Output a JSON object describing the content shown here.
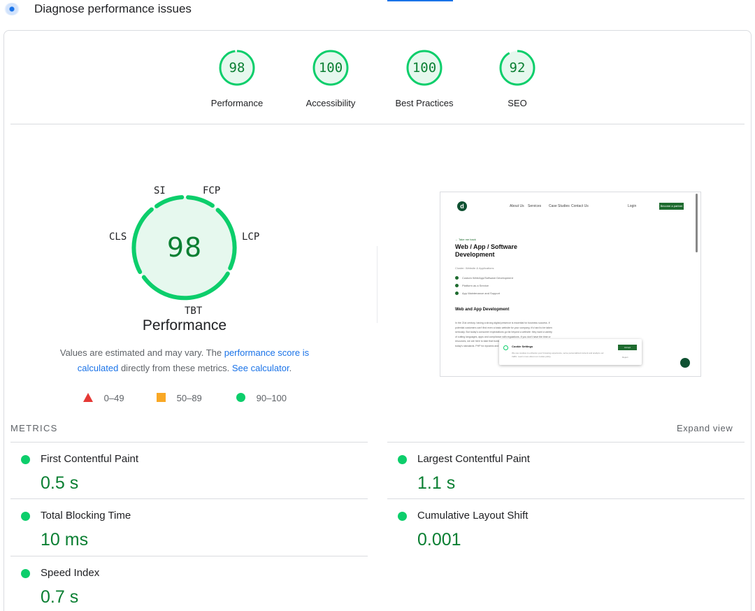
{
  "header": {
    "title": "Diagnose performance issues"
  },
  "categories": [
    {
      "label": "Performance",
      "score": "98",
      "fraction": 0.98
    },
    {
      "label": "Accessibility",
      "score": "100",
      "fraction": 1.0
    },
    {
      "label": "Best Practices",
      "score": "100",
      "fraction": 1.0
    },
    {
      "label": "SEO",
      "score": "92",
      "fraction": 0.92
    }
  ],
  "performance": {
    "score": "98",
    "title": "Performance",
    "segments": [
      "SI",
      "FCP",
      "LCP",
      "TBT",
      "CLS"
    ],
    "note_prefix": "Values are estimated and may vary. The ",
    "note_link1": "performance score is calculated",
    "note_middle": " directly from these metrics. ",
    "note_link2": "See calculator",
    "note_suffix": "."
  },
  "legend": {
    "poor": "0–49",
    "average": "50–89",
    "good": "90–100"
  },
  "screenshot": {
    "nav_links": [
      "About Us",
      "Services",
      "Case Studies",
      "Contact Us"
    ],
    "login": "Login",
    "cta": "Become a partner",
    "back": "← Take me back",
    "heading": "Web / App / Software Development",
    "subheading": "Cluster: Website & Applications",
    "bullets": [
      "Custom Web/App/Software Development",
      "Platform as a Service",
      "App Maintenance and Support"
    ],
    "section_title": "Web and App Development",
    "paragraph": "In the 21st century, having a strong digital presence is essential for business success. If potential customers can't find even a basic website for your company, it's hard to be taken seriously. But today's consumer expectations go far beyond a website: they want a variety of cutting languages, apps and compliance with regulations. If you don't have the time or resources, we are here to take that burden off your shoulders. Your presence needs today's standards. PHP for dynamic and interactive websites and applications.",
    "cookie_title": "Cookie Settings",
    "cookie_text": "We use cookies to enhance your browsing experience, serve personalized content and analyze our traffic. Learn more about our cookie policy.",
    "cookie_accept": "Accept",
    "cookie_reject": "Reject"
  },
  "metrics": {
    "label": "METRICS",
    "expand": "Expand view",
    "items": [
      {
        "name": "First Contentful Paint",
        "value": "0.5 s",
        "status": "good"
      },
      {
        "name": "Largest Contentful Paint",
        "value": "1.1 s",
        "status": "good"
      },
      {
        "name": "Total Blocking Time",
        "value": "10 ms",
        "status": "good"
      },
      {
        "name": "Cumulative Layout Shift",
        "value": "0.001",
        "status": "good"
      },
      {
        "name": "Speed Index",
        "value": "0.7 s",
        "status": "good"
      }
    ]
  },
  "colors": {
    "good": "#0cce6b",
    "good_text": "#0a7f32",
    "average": "#f9a825",
    "poor": "#e53935",
    "link": "#1a73e8"
  }
}
